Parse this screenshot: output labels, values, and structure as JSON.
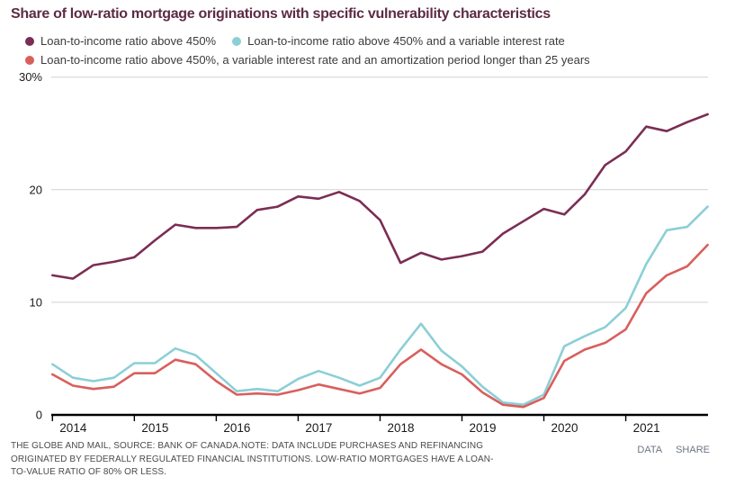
{
  "title": "Share of low-ratio mortgage originations with specific vulnerability characteristics",
  "legend": [
    {
      "label": "Loan-to-income ratio above 450%",
      "color": "#7b2d54"
    },
    {
      "label": "Loan-to-income ratio above 450% and a variable interest rate",
      "color": "#8ccfd6"
    },
    {
      "label": "Loan-to-income ratio above 450%, a variable interest rate and an amortization period longer than 25 years",
      "color": "#d95f5c"
    }
  ],
  "footer": {
    "lines": [
      "THE GLOBE AND MAIL, SOURCE: BANK OF CANADA.NOTE: DATA INCLUDE PURCHASES AND REFINANCING",
      "ORIGINATED BY FEDERALLY REGULATED FINANCIAL INSTITUTIONS. LOW-RATIO MORTGAGES HAVE A LOAN-",
      "TO-VALUE RATIO OF 80% OR LESS."
    ],
    "actions": [
      {
        "label": "DATA"
      },
      {
        "label": "SHARE"
      }
    ]
  },
  "chart_data": {
    "type": "line",
    "x_quarters": [
      "2014 Q1",
      "2014 Q2",
      "2014 Q3",
      "2014 Q4",
      "2015 Q1",
      "2015 Q2",
      "2015 Q3",
      "2015 Q4",
      "2016 Q1",
      "2016 Q2",
      "2016 Q3",
      "2016 Q4",
      "2017 Q1",
      "2017 Q2",
      "2017 Q3",
      "2017 Q4",
      "2018 Q1",
      "2018 Q2",
      "2018 Q3",
      "2018 Q4",
      "2019 Q1",
      "2019 Q2",
      "2019 Q3",
      "2019 Q4",
      "2020 Q1",
      "2020 Q2",
      "2020 Q3",
      "2020 Q4",
      "2021 Q1",
      "2021 Q2",
      "2021 Q3",
      "2021 Q4",
      "2022 Q1"
    ],
    "x_tick_labels": [
      "2014",
      "2015",
      "2016",
      "2017",
      "2018",
      "2019",
      "2020",
      "2021"
    ],
    "y_ticks": [
      {
        "value": 0,
        "label": "0"
      },
      {
        "value": 10,
        "label": "10"
      },
      {
        "value": 20,
        "label": "20"
      },
      {
        "value": 30,
        "label": "30%"
      }
    ],
    "ylim": [
      0,
      30
    ],
    "grid": "horizontal",
    "legend_position": "top",
    "series": [
      {
        "name": "Loan-to-income ratio above 450%",
        "color": "#7b2d54",
        "values": [
          12.4,
          12.1,
          13.3,
          13.6,
          14.0,
          15.5,
          16.9,
          16.6,
          16.6,
          16.7,
          18.2,
          18.5,
          19.4,
          19.2,
          19.8,
          19.0,
          17.3,
          13.5,
          14.4,
          13.8,
          14.1,
          14.5,
          16.1,
          17.2,
          18.3,
          17.8,
          19.6,
          22.2,
          23.4,
          25.6,
          25.2,
          26.0,
          26.7
        ]
      },
      {
        "name": "Loan-to-income ratio above 450% and a variable interest rate",
        "color": "#8ccfd6",
        "values": [
          4.5,
          3.3,
          3.0,
          3.3,
          4.6,
          4.6,
          5.9,
          5.3,
          3.7,
          2.1,
          2.3,
          2.1,
          3.2,
          3.9,
          3.3,
          2.6,
          3.3,
          5.8,
          8.1,
          5.7,
          4.3,
          2.5,
          1.1,
          0.9,
          1.8,
          6.1,
          7.0,
          7.8,
          9.5,
          13.4,
          16.4,
          16.7,
          18.5
        ]
      },
      {
        "name": "Loan-to-income ratio above 450%, a variable interest rate and an amortization period longer than 25 years",
        "color": "#d95f5c",
        "values": [
          3.6,
          2.6,
          2.3,
          2.5,
          3.7,
          3.7,
          4.9,
          4.5,
          3.0,
          1.8,
          1.9,
          1.8,
          2.2,
          2.7,
          2.3,
          1.9,
          2.4,
          4.5,
          5.8,
          4.5,
          3.6,
          2.0,
          0.9,
          0.7,
          1.5,
          4.8,
          5.8,
          6.4,
          7.6,
          10.8,
          12.4,
          13.2,
          15.1
        ]
      }
    ]
  }
}
